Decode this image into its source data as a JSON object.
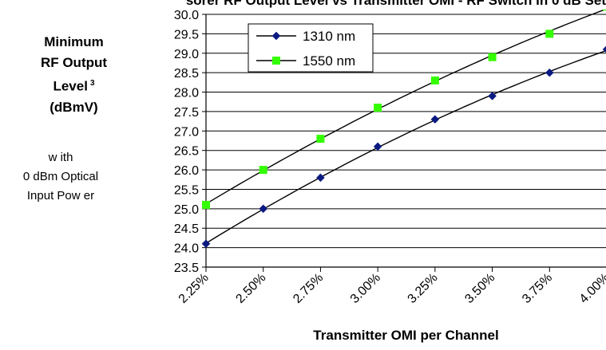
{
  "title": "sorer RF Output Level vs Transmitter OMI - RF Switch in 0 dB Set",
  "y_axis_label": {
    "line1": "Minimum",
    "line2": "RF Output",
    "line3": "Level",
    "superscript": "3",
    "line4": "(dBmV)",
    "sub_line1": "w ith",
    "sub_line2": "0  dBm Optical",
    "sub_line3": "Input Pow er"
  },
  "x_axis_label": "Transmitter OMI per Channel",
  "chart_data": {
    "type": "line",
    "x_tick_labels": [
      "2.25%",
      "2.50%",
      "2.75%",
      "3.00%",
      "3.25%",
      "3.50%",
      "3.75%",
      "4.00%"
    ],
    "x": [
      2.25,
      2.5,
      2.75,
      3.0,
      3.25,
      3.5,
      3.75,
      4.0
    ],
    "xlim": [
      2.25,
      4.0
    ],
    "ylim": [
      23.5,
      30.0
    ],
    "y_tick_labels": [
      "23.5",
      "24.0",
      "24.5",
      "25.0",
      "25.5",
      "26.0",
      "26.5",
      "27.0",
      "27.5",
      "28.0",
      "28.5",
      "29.0",
      "29.5",
      "30.0"
    ],
    "y_ticks": [
      23.5,
      24.0,
      24.5,
      25.0,
      25.5,
      26.0,
      26.5,
      27.0,
      27.5,
      28.0,
      28.5,
      29.0,
      29.5,
      30.0
    ],
    "grid": "horizontal",
    "legend_position": "top-left",
    "series": [
      {
        "name": "1310 nm",
        "marker": "diamond",
        "color": "#0a1a80",
        "values": [
          24.1,
          25.0,
          25.8,
          26.6,
          27.3,
          27.9,
          28.5,
          29.1
        ]
      },
      {
        "name": "1550 nm",
        "marker": "square",
        "color": "#33ff00",
        "values": [
          25.1,
          26.0,
          26.8,
          27.6,
          28.3,
          28.9,
          29.5,
          30.2
        ]
      }
    ],
    "trendline_color": "#000000"
  }
}
